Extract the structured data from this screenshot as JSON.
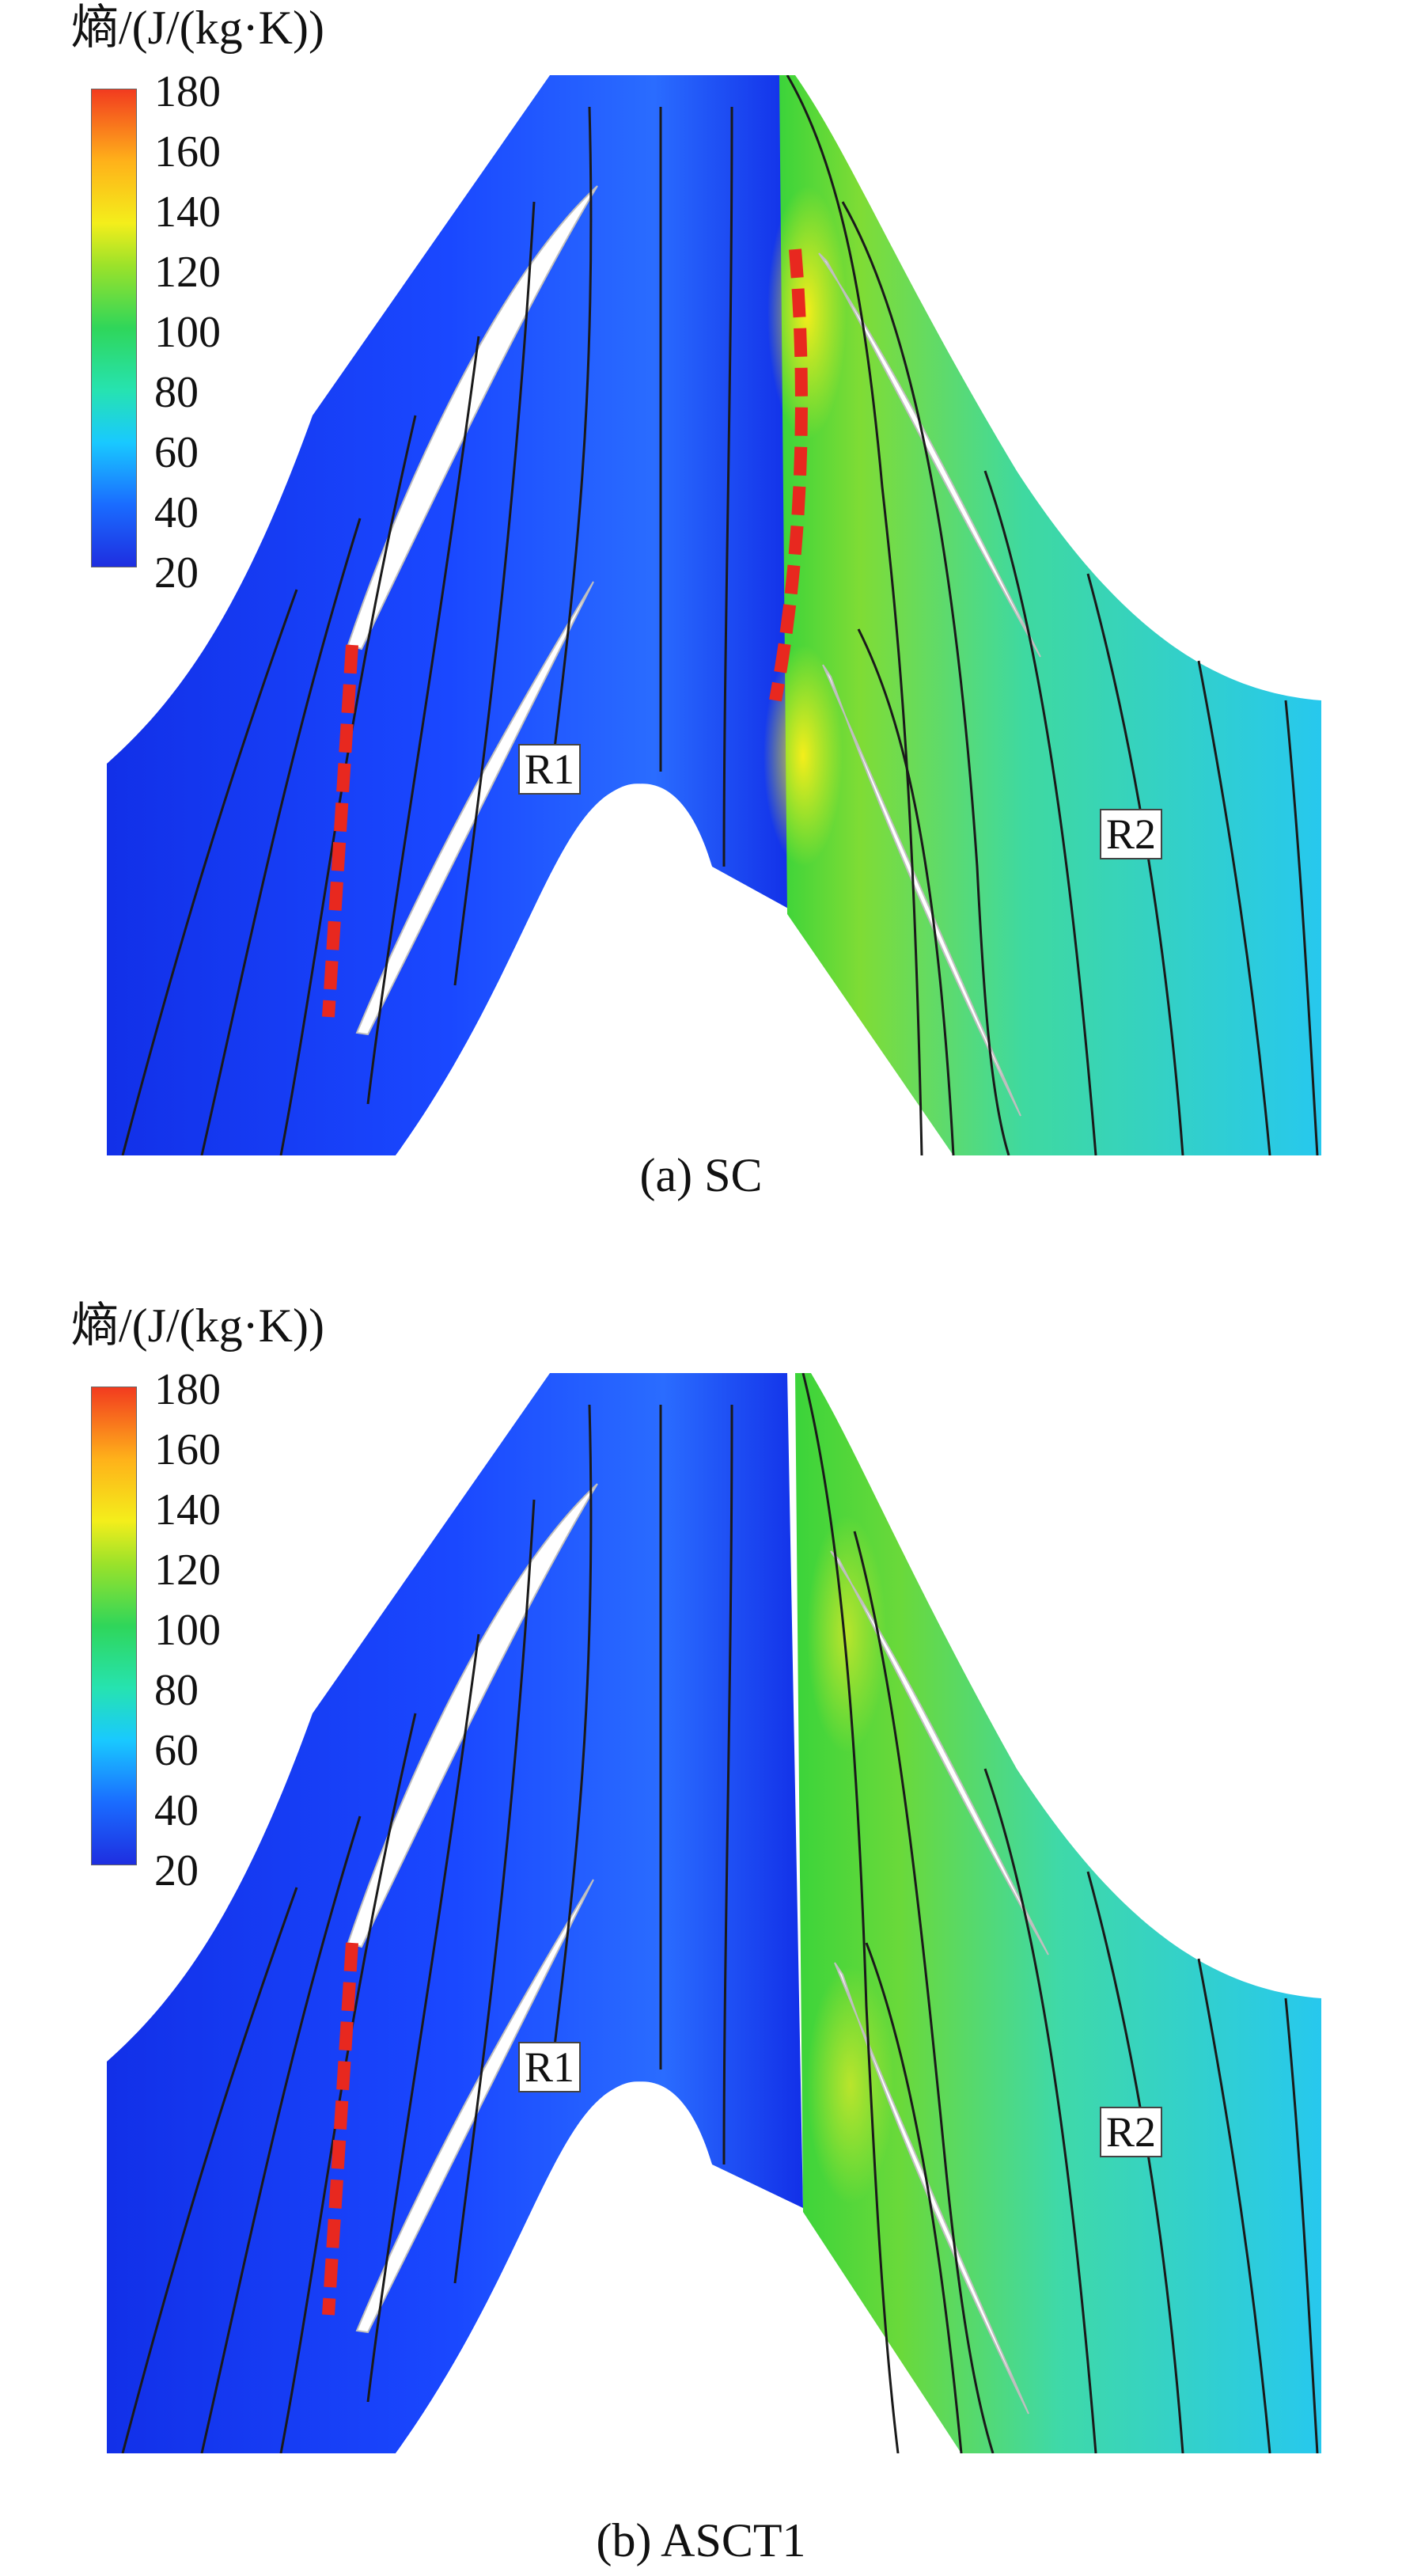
{
  "colorbar": {
    "title": "熵/(J/(kg·K))",
    "ticks": [
      "180",
      "160",
      "140",
      "120",
      "100",
      "80",
      "60",
      "40",
      "20"
    ],
    "colors": [
      "#1e2ee0",
      "#1a6cff",
      "#19c9ff",
      "#26e3b0",
      "#2fd65a",
      "#9be22a",
      "#f4ee1b",
      "#ffb11a",
      "#f23b1f"
    ]
  },
  "panels": [
    {
      "caption": "(a) SC",
      "labels": {
        "r1": "R1",
        "r2": "R2"
      }
    },
    {
      "caption": "(b) ASCT1",
      "labels": {
        "r1": "R1",
        "r2": "R2"
      }
    }
  ],
  "colors": {
    "low_entropy": "#1230e8",
    "mid_entropy": "#2fd65a",
    "high_entropy": "#f4ee1b",
    "outlet_cyan": "#27c8ee",
    "marker_dash": "#e8281f",
    "streamline": "#1a1a1a"
  }
}
